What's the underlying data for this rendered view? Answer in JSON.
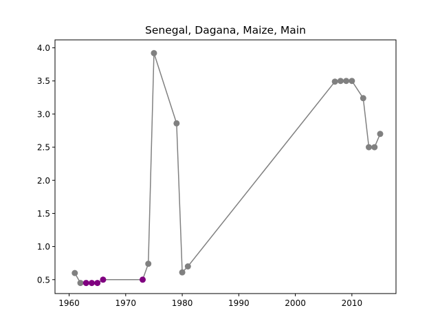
{
  "chart_data": {
    "type": "line",
    "title": "Senegal, Dagana, Maize, Main",
    "xlabel": "",
    "ylabel": "",
    "xlim": [
      1957.5,
      2017.8
    ],
    "ylim": [
      0.29,
      4.12
    ],
    "xticks": [
      1960,
      1970,
      1980,
      1990,
      2000,
      2010
    ],
    "yticks": [
      0.5,
      1.0,
      1.5,
      2.0,
      2.5,
      3.0,
      3.5,
      4.0
    ],
    "xtick_labels": [
      "1960",
      "1970",
      "1980",
      "1990",
      "2000",
      "2010"
    ],
    "ytick_labels": [
      "0.5",
      "1.0",
      "1.5",
      "2.0",
      "2.5",
      "3.0",
      "3.5",
      "4.0"
    ],
    "grid": false,
    "legend": "none",
    "line_color": "#808080",
    "series": [
      {
        "x": [
          1961,
          1962,
          1963,
          1964,
          1965,
          1966,
          1973,
          1974,
          1975,
          1979,
          1980,
          1981,
          2007,
          2008,
          2009,
          2010,
          2012,
          2013,
          2014,
          2015
        ],
        "values": [
          0.6,
          0.45,
          0.45,
          0.45,
          0.45,
          0.5,
          0.5,
          0.74,
          3.92,
          2.86,
          0.61,
          0.7,
          3.49,
          3.5,
          3.5,
          3.5,
          3.24,
          2.5,
          2.5,
          2.7
        ],
        "colors": [
          "#808080",
          "#808080",
          "#800080",
          "#800080",
          "#800080",
          "#800080",
          "#800080",
          "#808080",
          "#808080",
          "#808080",
          "#808080",
          "#808080",
          "#808080",
          "#808080",
          "#808080",
          "#808080",
          "#808080",
          "#808080",
          "#808080",
          "#808080"
        ]
      }
    ]
  }
}
